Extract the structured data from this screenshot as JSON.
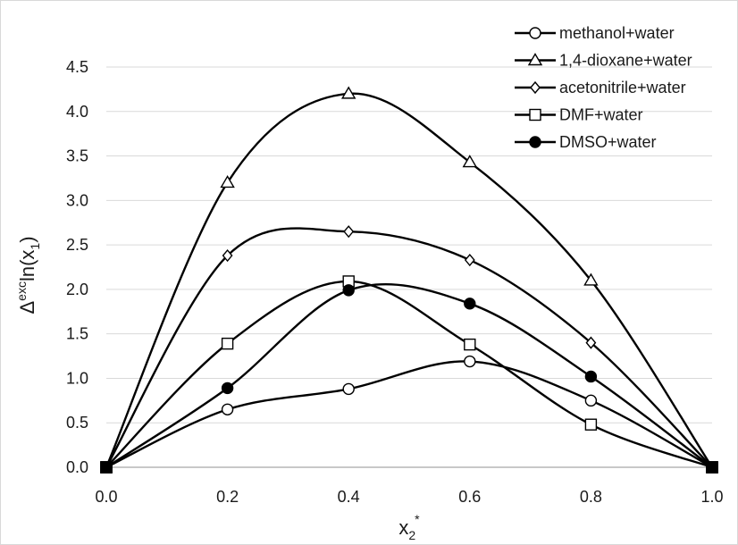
{
  "chart_data": {
    "type": "line",
    "x": [
      0.0,
      0.2,
      0.4,
      0.6,
      0.8,
      1.0
    ],
    "x_ticks": [
      "0.0",
      "0.2",
      "0.4",
      "0.6",
      "0.8",
      "1.0"
    ],
    "y_ticks": [
      "0.0",
      "0.5",
      "1.0",
      "1.5",
      "2.0",
      "2.5",
      "3.0",
      "3.5",
      "4.0",
      "4.5"
    ],
    "xlim": [
      0.0,
      1.0
    ],
    "ylim": [
      0.0,
      4.5
    ],
    "grid": "horizontal",
    "legend_position": "top-right",
    "xlabel": {
      "base": "x",
      "sub": "2",
      "sup": "*"
    },
    "ylabel": {
      "prefix": "Δ",
      "sup": "exc",
      "mid": "ln(x",
      "sub": "1",
      "suffix": ")"
    },
    "series": [
      {
        "name": "methanol+water",
        "marker": "circle-open",
        "values": [
          0.0,
          0.65,
          0.88,
          1.19,
          0.75,
          0.0
        ]
      },
      {
        "name": "1,4-dioxane+water",
        "marker": "triangle-open",
        "values": [
          0.0,
          3.2,
          4.2,
          3.43,
          2.1,
          0.0
        ]
      },
      {
        "name": "acetonitrile+water",
        "marker": "diamond-open",
        "values": [
          0.0,
          2.38,
          2.65,
          2.33,
          1.4,
          0.0
        ]
      },
      {
        "name": "DMF+water",
        "marker": "square-open",
        "values": [
          0.0,
          1.39,
          2.09,
          1.38,
          0.48,
          0.0
        ]
      },
      {
        "name": "DMSO+water",
        "marker": "circle-filled",
        "values": [
          0.0,
          0.89,
          1.99,
          1.84,
          1.02,
          0.0
        ]
      }
    ]
  }
}
